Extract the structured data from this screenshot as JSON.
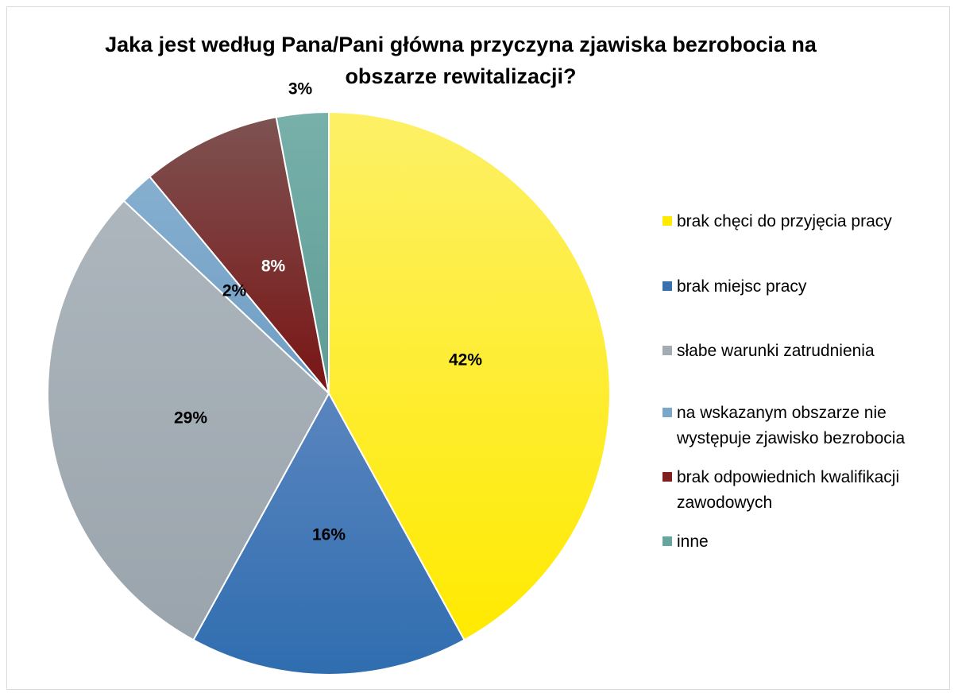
{
  "chart_data": {
    "type": "pie",
    "title": "Jaka jest według Pana/Pani główna przyczyna zjawiska bezrobocia na obszarze rewitalizacji?",
    "categories": [
      "brak chęci do przyjęcia pracy",
      "brak miejsc pracy",
      "słabe warunki zatrudnienia",
      "na wskazanym obszarze nie występuje zjawisko bezrobocia",
      "brak odpowiednich kwalifikacji zawodowych",
      "inne"
    ],
    "values": [
      42,
      16,
      29,
      2,
      8,
      3
    ],
    "data_labels": [
      "42%",
      "16%",
      "29%",
      "2%",
      "8%",
      "3%"
    ],
    "colors": [
      "#ffeb3b",
      "#4a78b5",
      "#a7b0b8",
      "#7fa8c9",
      "#7f2a2a",
      "#6fa9a3"
    ],
    "legend_position": "right"
  }
}
